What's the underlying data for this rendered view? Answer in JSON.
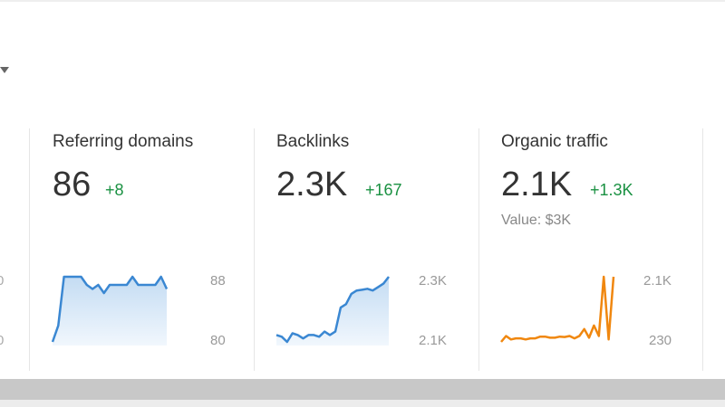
{
  "partial_left": {
    "axis_top": "0",
    "axis_bottom": "0"
  },
  "cards": [
    {
      "title": "Referring domains",
      "value": "86",
      "delta": "+8",
      "axis_top": "88",
      "axis_bottom": "80",
      "color": "#3a87d2",
      "spark_values": [
        80,
        82,
        88,
        88,
        88,
        88,
        87,
        86.5,
        87,
        86,
        87,
        87,
        87,
        87,
        88,
        87,
        87,
        87,
        87,
        88,
        86.5
      ]
    },
    {
      "title": "Backlinks",
      "value": "2.3K",
      "delta": "+167",
      "axis_top": "2.3K",
      "axis_bottom": "2.1K",
      "color": "#3a87d2",
      "spark_values": [
        2130,
        2125,
        2110,
        2135,
        2130,
        2120,
        2130,
        2130,
        2125,
        2140,
        2130,
        2140,
        2210,
        2220,
        2250,
        2260,
        2262,
        2265,
        2260,
        2270,
        2280,
        2300
      ]
    },
    {
      "title": "Organic traffic",
      "value": "2.1K",
      "delta": "+1.3K",
      "sub": "Value: $3K",
      "axis_top": "2.1K",
      "axis_bottom": "230",
      "color": "#f0870f",
      "spark_values": [
        230,
        400,
        300,
        330,
        330,
        300,
        330,
        330,
        380,
        380,
        350,
        350,
        380,
        370,
        400,
        330,
        400,
        600,
        350,
        700,
        400,
        2100,
        300,
        2100
      ]
    }
  ]
}
